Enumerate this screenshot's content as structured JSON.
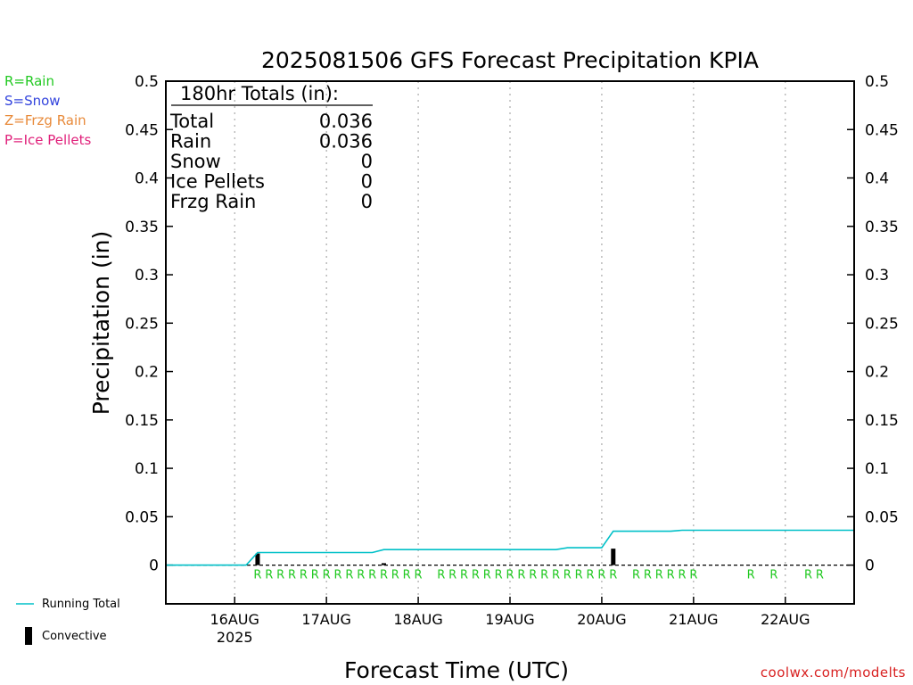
{
  "chart_data": {
    "type": "line",
    "title": "2025081506 GFS Forecast Precipitation KPIA",
    "xlabel": "Forecast Time (UTC)",
    "ylabel": "Precipitation (in)",
    "ylim": [
      -0.04,
      0.5
    ],
    "y_ticks": [
      "0",
      "0.05",
      "0.1",
      "0.15",
      "0.2",
      "0.25",
      "0.3",
      "0.35",
      "0.4",
      "0.45",
      "0.5"
    ],
    "y_tick_values": [
      0,
      0.05,
      0.1,
      0.15,
      0.2,
      0.25,
      0.3,
      0.35,
      0.4,
      0.45,
      0.5
    ],
    "xlim": [
      "2025-08-15T06",
      "2025-08-22T18"
    ],
    "x_ticks": [
      {
        "t": "2025-08-16T00",
        "label": "16AUG",
        "sub": "2025"
      },
      {
        "t": "2025-08-17T00",
        "label": "17AUG",
        "sub": ""
      },
      {
        "t": "2025-08-18T00",
        "label": "18AUG",
        "sub": ""
      },
      {
        "t": "2025-08-19T00",
        "label": "19AUG",
        "sub": ""
      },
      {
        "t": "2025-08-20T00",
        "label": "20AUG",
        "sub": ""
      },
      {
        "t": "2025-08-21T00",
        "label": "21AUG",
        "sub": ""
      },
      {
        "t": "2025-08-22T00",
        "label": "22AUG",
        "sub": ""
      }
    ],
    "grid": "vertical dotted",
    "series": [
      {
        "name": "Running Total",
        "color": "#00c0c8",
        "points": [
          [
            "2025-08-15T06",
            0
          ],
          [
            "2025-08-16T00",
            0
          ],
          [
            "2025-08-16T03",
            0
          ],
          [
            "2025-08-16T06",
            0.013
          ],
          [
            "2025-08-17T12",
            0.013
          ],
          [
            "2025-08-17T15",
            0.016
          ],
          [
            "2025-08-19T12",
            0.016
          ],
          [
            "2025-08-19T15",
            0.018
          ],
          [
            "2025-08-20T00",
            0.018
          ],
          [
            "2025-08-20T03",
            0.035
          ],
          [
            "2025-08-20T18",
            0.035
          ],
          [
            "2025-08-20T21",
            0.036
          ],
          [
            "2025-08-22T18",
            0.036
          ]
        ]
      },
      {
        "name": "Convective",
        "color": "#000000",
        "bars": [
          [
            "2025-08-16T06",
            0.012
          ],
          [
            "2025-08-17T15",
            0.002
          ],
          [
            "2025-08-20T03",
            0.017
          ]
        ]
      }
    ],
    "ptype_marks": {
      "color": "#22c922",
      "letter": "R",
      "times": [
        "2025-08-16T06",
        "2025-08-16T09",
        "2025-08-16T12",
        "2025-08-16T15",
        "2025-08-16T18",
        "2025-08-16T21",
        "2025-08-17T00",
        "2025-08-17T03",
        "2025-08-17T06",
        "2025-08-17T09",
        "2025-08-17T12",
        "2025-08-17T15",
        "2025-08-17T18",
        "2025-08-17T21",
        "2025-08-18T00",
        "2025-08-18T06",
        "2025-08-18T09",
        "2025-08-18T12",
        "2025-08-18T15",
        "2025-08-18T18",
        "2025-08-18T21",
        "2025-08-19T00",
        "2025-08-19T03",
        "2025-08-19T06",
        "2025-08-19T09",
        "2025-08-19T12",
        "2025-08-19T15",
        "2025-08-19T18",
        "2025-08-19T21",
        "2025-08-20T00",
        "2025-08-20T03",
        "2025-08-20T09",
        "2025-08-20T12",
        "2025-08-20T15",
        "2025-08-20T18",
        "2025-08-20T21",
        "2025-08-21T00",
        "2025-08-21T15",
        "2025-08-21T21",
        "2025-08-22T06",
        "2025-08-22T09"
      ]
    },
    "totals_box": {
      "heading": "180hr Totals (in):",
      "rows": [
        {
          "label": "Total",
          "value": "0.036"
        },
        {
          "label": "Rain",
          "value": "0.036"
        },
        {
          "label": "Snow",
          "value": "0"
        },
        {
          "label": "Ice Pellets",
          "value": "0"
        },
        {
          "label": "Frzg Rain",
          "value": "0"
        }
      ]
    }
  },
  "type_legend": {
    "rain": "R=Rain",
    "snow": "S=Snow",
    "zr": "Z=Frzg Rain",
    "ip": "P=Ice Pellets"
  },
  "bottom_legend": {
    "running_total": "Running Total",
    "convective": "Convective"
  },
  "credit": "coolwx.com/modelts"
}
